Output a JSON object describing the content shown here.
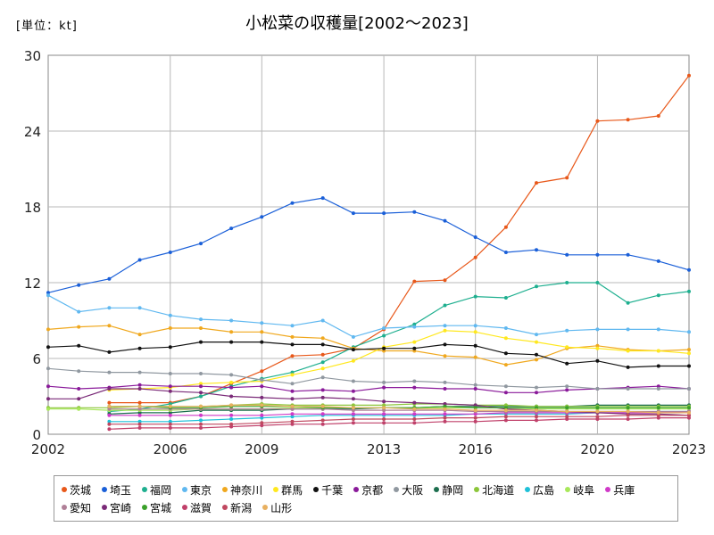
{
  "chart_data": {
    "type": "line",
    "title": "小松菜の収穫量[2002〜2023]",
    "unit_label": "[単位：kt]",
    "xlabel": "",
    "ylabel": "",
    "ylim": [
      0,
      30
    ],
    "yticks": [
      "0",
      "6",
      "12",
      "18",
      "24",
      "30"
    ],
    "xticks": [
      "2002",
      "2006",
      "2009",
      "2013",
      "2016",
      "2020",
      "2023"
    ],
    "x_years": [
      2002,
      2003,
      2004,
      2005,
      2006,
      2007,
      2008,
      2009,
      2010,
      2011,
      2012,
      2013,
      2014,
      2015,
      2016,
      2017,
      2018,
      2019,
      2020,
      2021,
      2022,
      2023
    ],
    "series": [
      {
        "name": "茨城",
        "color": "#E8581A",
        "values": [
          null,
          null,
          2.5,
          2.5,
          2.5,
          3.0,
          4.0,
          5.0,
          6.2,
          6.3,
          6.8,
          8.3,
          12.1,
          12.2,
          14.0,
          16.4,
          19.9,
          20.3,
          24.8,
          24.9,
          25.2,
          28.4
        ]
      },
      {
        "name": "埼玉",
        "color": "#1A5FD8",
        "values": [
          11.2,
          11.8,
          12.3,
          13.8,
          14.4,
          15.1,
          16.3,
          17.2,
          18.3,
          18.7,
          17.5,
          17.5,
          17.6,
          16.9,
          15.6,
          14.4,
          14.6,
          14.2,
          14.2,
          14.2,
          13.7,
          13.0
        ]
      },
      {
        "name": "福岡",
        "color": "#1EAF8F",
        "values": [
          null,
          null,
          1.8,
          2.0,
          2.4,
          3.0,
          3.8,
          4.4,
          4.9,
          5.7,
          6.9,
          7.8,
          8.7,
          10.2,
          10.9,
          10.8,
          11.7,
          12.0,
          12.0,
          10.4,
          11.0,
          11.3
        ]
      },
      {
        "name": "東京",
        "color": "#60B8F0",
        "values": [
          11.0,
          9.7,
          10.0,
          10.0,
          9.4,
          9.1,
          9.0,
          8.8,
          8.6,
          9.0,
          7.7,
          8.4,
          8.5,
          8.6,
          8.6,
          8.4,
          7.9,
          8.2,
          8.3,
          8.3,
          8.3,
          8.1
        ]
      },
      {
        "name": "神奈川",
        "color": "#F0A81E",
        "values": [
          8.3,
          8.5,
          8.6,
          7.9,
          8.4,
          8.4,
          8.1,
          8.1,
          7.7,
          7.6,
          6.8,
          6.6,
          6.6,
          6.2,
          6.1,
          5.5,
          5.9,
          6.8,
          7.0,
          6.7,
          6.6,
          6.7
        ]
      },
      {
        "name": "群馬",
        "color": "#FFE81E",
        "values": [
          null,
          null,
          3.5,
          3.6,
          3.7,
          4.0,
          4.1,
          4.2,
          4.7,
          5.2,
          5.8,
          6.9,
          7.3,
          8.2,
          8.1,
          7.6,
          7.3,
          6.9,
          6.8,
          6.6,
          6.6,
          6.4
        ]
      },
      {
        "name": "千葉",
        "color": "#111111",
        "values": [
          6.9,
          7.0,
          6.5,
          6.8,
          6.9,
          7.3,
          7.3,
          7.3,
          7.1,
          7.1,
          6.7,
          6.8,
          6.8,
          7.1,
          7.0,
          6.4,
          6.3,
          5.6,
          5.8,
          5.3,
          5.4,
          5.4
        ]
      },
      {
        "name": "京都",
        "color": "#8A1A9A",
        "values": [
          3.8,
          3.6,
          3.7,
          3.9,
          3.8,
          3.8,
          3.7,
          3.8,
          3.4,
          3.5,
          3.4,
          3.7,
          3.7,
          3.6,
          3.6,
          3.3,
          3.3,
          3.5,
          3.6,
          3.7,
          3.8,
          3.6
        ]
      },
      {
        "name": "大阪",
        "color": "#9098A0",
        "values": [
          5.2,
          5.0,
          4.9,
          4.9,
          4.8,
          4.8,
          4.7,
          4.3,
          4.0,
          4.5,
          4.2,
          4.1,
          4.2,
          4.1,
          3.9,
          3.8,
          3.7,
          3.8,
          3.6,
          3.6,
          3.6,
          3.6
        ]
      },
      {
        "name": "静岡",
        "color": "#1C6E4E",
        "values": [
          null,
          null,
          1.6,
          1.7,
          1.7,
          1.9,
          1.9,
          1.9,
          2.0,
          2.0,
          2.0,
          2.1,
          2.1,
          2.2,
          2.2,
          2.2,
          2.2,
          2.2,
          2.3,
          2.3,
          2.3,
          2.3
        ]
      },
      {
        "name": "北海道",
        "color": "#8CC63A",
        "values": [
          2.1,
          2.1,
          2.1,
          2.2,
          2.2,
          2.2,
          2.3,
          2.4,
          2.3,
          2.3,
          2.3,
          2.3,
          2.4,
          2.4,
          2.3,
          2.3,
          2.2,
          2.2,
          2.2,
          2.2,
          2.2,
          2.2
        ]
      },
      {
        "name": "広島",
        "color": "#1EC0D8",
        "values": [
          null,
          null,
          1.0,
          1.0,
          1.0,
          1.1,
          1.2,
          1.3,
          1.4,
          1.5,
          1.5,
          1.5,
          1.5,
          1.5,
          1.6,
          1.6,
          1.6,
          1.6,
          1.7,
          1.7,
          1.8,
          1.8
        ]
      },
      {
        "name": "岐阜",
        "color": "#A8E85A",
        "values": [
          2.0,
          2.0,
          1.9,
          1.9,
          1.9,
          2.0,
          2.0,
          2.0,
          2.1,
          2.1,
          2.1,
          2.1,
          2.1,
          2.1,
          2.1,
          2.1,
          2.0,
          2.0,
          2.0,
          2.0,
          2.0,
          2.0
        ]
      },
      {
        "name": "兵庫",
        "color": "#D03AC8",
        "values": [
          null,
          null,
          1.5,
          1.5,
          1.5,
          1.5,
          1.5,
          1.5,
          1.6,
          1.6,
          1.6,
          1.6,
          1.6,
          1.6,
          1.6,
          1.7,
          1.7,
          1.7,
          1.7,
          1.7,
          1.7,
          1.8
        ]
      },
      {
        "name": "愛知",
        "color": "#B08098",
        "values": [
          null,
          null,
          2.0,
          2.0,
          2.0,
          2.0,
          2.0,
          2.0,
          2.0,
          2.0,
          1.9,
          1.9,
          1.9,
          1.9,
          1.8,
          1.8,
          1.8,
          1.8,
          1.8,
          1.8,
          1.8,
          1.8
        ]
      },
      {
        "name": "宮崎",
        "color": "#7A2A78",
        "values": [
          2.8,
          2.8,
          3.6,
          3.6,
          3.4,
          3.3,
          3.0,
          2.9,
          2.8,
          2.9,
          2.8,
          2.6,
          2.5,
          2.4,
          2.3,
          2.0,
          1.9,
          1.8,
          1.7,
          1.6,
          1.6,
          1.5
        ]
      },
      {
        "name": "宮城",
        "color": "#3AA02A",
        "values": [
          null,
          null,
          2.2,
          2.2,
          2.1,
          2.1,
          2.2,
          2.2,
          2.2,
          2.1,
          2.1,
          2.1,
          2.1,
          2.2,
          2.1,
          2.1,
          2.1,
          2.1,
          2.1,
          2.1,
          2.1,
          2.1
        ]
      },
      {
        "name": "滋賀",
        "color": "#C0406A",
        "values": [
          null,
          null,
          0.4,
          0.5,
          0.5,
          0.5,
          0.6,
          0.7,
          0.8,
          0.8,
          0.9,
          0.9,
          0.9,
          1.0,
          1.0,
          1.1,
          1.1,
          1.2,
          1.2,
          1.2,
          1.3,
          1.3
        ]
      },
      {
        "name": "新潟",
        "color": "#C04860",
        "values": [
          null,
          null,
          0.8,
          0.8,
          0.8,
          0.8,
          0.8,
          0.9,
          1.0,
          1.1,
          1.2,
          1.2,
          1.2,
          1.3,
          1.3,
          1.4,
          1.4,
          1.4,
          1.4,
          1.5,
          1.5,
          1.5
        ]
      },
      {
        "name": "山形",
        "color": "#E8B060",
        "values": [
          null,
          null,
          2.2,
          2.2,
          2.2,
          2.2,
          2.3,
          2.3,
          2.2,
          2.2,
          2.1,
          2.1,
          2.0,
          2.0,
          1.9,
          1.9,
          1.9,
          1.8,
          1.8,
          1.8,
          1.7,
          1.7
        ]
      }
    ]
  }
}
